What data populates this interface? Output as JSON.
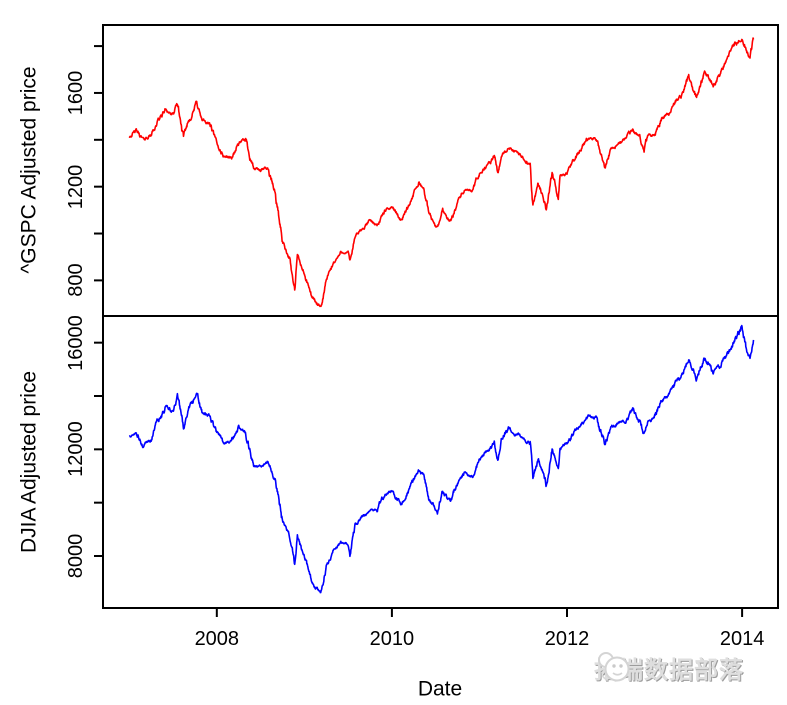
{
  "chart_data": [
    {
      "type": "line",
      "panel": "top",
      "series_name": "^GSPC",
      "ylabel": "^GSPC Adjusted price",
      "color": "#ff0000",
      "x_unit": "decimal_year",
      "x_range": [
        2007.0,
        2014.13
      ],
      "ylim": [
        648,
        1890
      ],
      "yticks_all": [
        800,
        1000,
        1200,
        1400,
        1600,
        1800
      ],
      "yticks_labeled": [
        800,
        1200,
        1600
      ],
      "grid": false,
      "legend": false,
      "points": [
        [
          2007.0,
          1416
        ],
        [
          2007.08,
          1438
        ],
        [
          2007.16,
          1400
        ],
        [
          2007.25,
          1421
        ],
        [
          2007.33,
          1482
        ],
        [
          2007.42,
          1531
        ],
        [
          2007.5,
          1503
        ],
        [
          2007.55,
          1553
        ],
        [
          2007.62,
          1406
        ],
        [
          2007.67,
          1474
        ],
        [
          2007.74,
          1527
        ],
        [
          2007.77,
          1565
        ],
        [
          2007.83,
          1481
        ],
        [
          2007.92,
          1468
        ],
        [
          2008.0,
          1378
        ],
        [
          2008.08,
          1331
        ],
        [
          2008.17,
          1323
        ],
        [
          2008.25,
          1386
        ],
        [
          2008.33,
          1400
        ],
        [
          2008.42,
          1280
        ],
        [
          2008.5,
          1267
        ],
        [
          2008.58,
          1283
        ],
        [
          2008.67,
          1166
        ],
        [
          2008.75,
          969
        ],
        [
          2008.83,
          896
        ],
        [
          2008.89,
          752
        ],
        [
          2008.92,
          903
        ],
        [
          2009.0,
          826
        ],
        [
          2009.08,
          735
        ],
        [
          2009.19,
          677
        ],
        [
          2009.25,
          798
        ],
        [
          2009.33,
          873
        ],
        [
          2009.42,
          919
        ],
        [
          2009.5,
          919
        ],
        [
          2009.52,
          879
        ],
        [
          2009.58,
          987
        ],
        [
          2009.67,
          1021
        ],
        [
          2009.75,
          1057
        ],
        [
          2009.83,
          1036
        ],
        [
          2009.92,
          1096
        ],
        [
          2010.0,
          1115
        ],
        [
          2010.08,
          1074
        ],
        [
          2010.1,
          1057
        ],
        [
          2010.17,
          1104
        ],
        [
          2010.25,
          1169
        ],
        [
          2010.31,
          1217
        ],
        [
          2010.37,
          1187
        ],
        [
          2010.42,
          1089
        ],
        [
          2010.5,
          1031
        ],
        [
          2010.52,
          1023
        ],
        [
          2010.58,
          1102
        ],
        [
          2010.67,
          1049
        ],
        [
          2010.75,
          1141
        ],
        [
          2010.83,
          1183
        ],
        [
          2010.92,
          1181
        ],
        [
          2011.0,
          1258
        ],
        [
          2011.08,
          1286
        ],
        [
          2011.17,
          1327
        ],
        [
          2011.21,
          1256
        ],
        [
          2011.25,
          1326
        ],
        [
          2011.33,
          1364
        ],
        [
          2011.42,
          1345
        ],
        [
          2011.5,
          1321
        ],
        [
          2011.58,
          1292
        ],
        [
          2011.61,
          1119
        ],
        [
          2011.67,
          1219
        ],
        [
          2011.75,
          1131
        ],
        [
          2011.76,
          1099
        ],
        [
          2011.83,
          1253
        ],
        [
          2011.9,
          1158
        ],
        [
          2011.92,
          1247
        ],
        [
          2012.0,
          1258
        ],
        [
          2012.08,
          1312
        ],
        [
          2012.17,
          1366
        ],
        [
          2012.25,
          1408
        ],
        [
          2012.33,
          1398
        ],
        [
          2012.42,
          1310
        ],
        [
          2012.43,
          1278
        ],
        [
          2012.5,
          1362
        ],
        [
          2012.58,
          1379
        ],
        [
          2012.67,
          1407
        ],
        [
          2012.75,
          1441
        ],
        [
          2012.83,
          1412
        ],
        [
          2012.88,
          1353
        ],
        [
          2012.92,
          1416
        ],
        [
          2013.0,
          1426
        ],
        [
          2013.08,
          1498
        ],
        [
          2013.17,
          1515
        ],
        [
          2013.25,
          1569
        ],
        [
          2013.33,
          1598
        ],
        [
          2013.39,
          1669
        ],
        [
          2013.42,
          1631
        ],
        [
          2013.48,
          1573
        ],
        [
          2013.5,
          1606
        ],
        [
          2013.58,
          1686
        ],
        [
          2013.67,
          1633
        ],
        [
          2013.75,
          1682
        ],
        [
          2013.83,
          1757
        ],
        [
          2013.92,
          1806
        ],
        [
          2014.0,
          1848
        ],
        [
          2014.05,
          1783
        ],
        [
          2014.09,
          1742
        ],
        [
          2014.13,
          1828
        ]
      ]
    },
    {
      "type": "line",
      "panel": "bottom",
      "series_name": "DJIA",
      "ylabel": "DJIA Adjusted price",
      "color": "#0000ff",
      "x_unit": "decimal_year",
      "x_range": [
        2007.0,
        2014.13
      ],
      "ylim": [
        6050,
        17000
      ],
      "yticks_all": [
        8000,
        10000,
        12000,
        14000,
        16000
      ],
      "yticks_labeled": [
        8000,
        12000,
        16000
      ],
      "grid": false,
      "legend": false,
      "points": [
        [
          2007.0,
          12475
        ],
        [
          2007.08,
          12622
        ],
        [
          2007.16,
          12110
        ],
        [
          2007.25,
          12354
        ],
        [
          2007.33,
          13063
        ],
        [
          2007.42,
          13628
        ],
        [
          2007.5,
          13409
        ],
        [
          2007.55,
          14000
        ],
        [
          2007.62,
          12846
        ],
        [
          2007.67,
          13358
        ],
        [
          2007.74,
          13896
        ],
        [
          2007.77,
          14165
        ],
        [
          2007.83,
          13372
        ],
        [
          2007.92,
          13265
        ],
        [
          2008.0,
          12650
        ],
        [
          2008.08,
          12266
        ],
        [
          2008.17,
          12263
        ],
        [
          2008.25,
          12820
        ],
        [
          2008.33,
          12638
        ],
        [
          2008.42,
          11350
        ],
        [
          2008.5,
          11378
        ],
        [
          2008.58,
          11544
        ],
        [
          2008.67,
          10851
        ],
        [
          2008.75,
          9325
        ],
        [
          2008.83,
          8829
        ],
        [
          2008.89,
          7552
        ],
        [
          2008.92,
          8776
        ],
        [
          2009.0,
          8001
        ],
        [
          2009.08,
          7063
        ],
        [
          2009.19,
          6547
        ],
        [
          2009.25,
          7609
        ],
        [
          2009.33,
          8168
        ],
        [
          2009.42,
          8500
        ],
        [
          2009.5,
          8447
        ],
        [
          2009.52,
          8147
        ],
        [
          2009.58,
          9172
        ],
        [
          2009.67,
          9496
        ],
        [
          2009.75,
          9712
        ],
        [
          2009.83,
          9713
        ],
        [
          2009.92,
          10345
        ],
        [
          2010.0,
          10428
        ],
        [
          2010.08,
          10067
        ],
        [
          2010.1,
          9908
        ],
        [
          2010.17,
          10325
        ],
        [
          2010.25,
          10857
        ],
        [
          2010.31,
          11205
        ],
        [
          2010.37,
          11009
        ],
        [
          2010.42,
          10137
        ],
        [
          2010.5,
          9774
        ],
        [
          2010.52,
          9686
        ],
        [
          2010.58,
          10466
        ],
        [
          2010.67,
          10015
        ],
        [
          2010.75,
          10788
        ],
        [
          2010.83,
          11118
        ],
        [
          2010.92,
          11006
        ],
        [
          2011.0,
          11578
        ],
        [
          2011.08,
          11892
        ],
        [
          2011.17,
          12226
        ],
        [
          2011.21,
          11613
        ],
        [
          2011.25,
          12320
        ],
        [
          2011.33,
          12811
        ],
        [
          2011.42,
          12570
        ],
        [
          2011.5,
          12414
        ],
        [
          2011.58,
          12143
        ],
        [
          2011.61,
          10810
        ],
        [
          2011.67,
          11614
        ],
        [
          2011.75,
          10913
        ],
        [
          2011.76,
          10655
        ],
        [
          2011.83,
          11955
        ],
        [
          2011.9,
          11232
        ],
        [
          2011.92,
          12046
        ],
        [
          2012.0,
          12218
        ],
        [
          2012.08,
          12633
        ],
        [
          2012.17,
          12952
        ],
        [
          2012.25,
          13212
        ],
        [
          2012.33,
          13214
        ],
        [
          2012.42,
          12393
        ],
        [
          2012.43,
          12101
        ],
        [
          2012.5,
          12880
        ],
        [
          2012.58,
          13009
        ],
        [
          2012.67,
          13091
        ],
        [
          2012.75,
          13437
        ],
        [
          2012.83,
          13096
        ],
        [
          2012.88,
          12542
        ],
        [
          2012.92,
          13026
        ],
        [
          2013.0,
          13104
        ],
        [
          2013.08,
          13861
        ],
        [
          2013.17,
          14054
        ],
        [
          2013.25,
          14579
        ],
        [
          2013.33,
          14840
        ],
        [
          2013.39,
          15387
        ],
        [
          2013.42,
          15116
        ],
        [
          2013.48,
          14659
        ],
        [
          2013.5,
          14910
        ],
        [
          2013.58,
          15500
        ],
        [
          2013.67,
          14810
        ],
        [
          2013.75,
          15130
        ],
        [
          2013.83,
          15546
        ],
        [
          2013.92,
          16086
        ],
        [
          2014.0,
          16577
        ],
        [
          2014.05,
          15699
        ],
        [
          2014.09,
          15373
        ],
        [
          2014.13,
          16103
        ]
      ]
    }
  ],
  "x_axis": {
    "label": "Date",
    "ticks": [
      2008,
      2010,
      2012,
      2014
    ],
    "xlim": [
      2006.7,
      2014.41
    ]
  },
  "watermark": {
    "text": "拓端数据部落",
    "icon": "tecdat-logo-icon",
    "color": "#dddddd"
  }
}
